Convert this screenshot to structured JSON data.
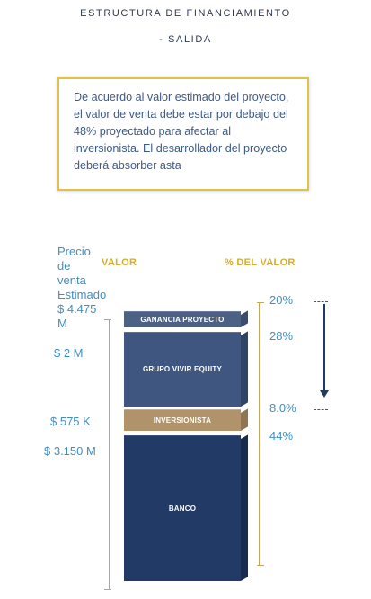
{
  "header": {
    "title": "ESTRUCTURA DE FINANCIAMIENTO",
    "subtitle": "- SALIDA"
  },
  "callout": {
    "text": "De acuerdo al valor estimado del proyecto, el valor de venta debe estar por debajo del 48% proyectado para afectar al inversionista. El desarrollador del proyecto deberá absorber asta"
  },
  "labels": {
    "valor_header": "VALOR",
    "pct_header": "% DEL VALOR",
    "precio_line1": "Precio",
    "precio_line2": "de",
    "precio_line3": "venta",
    "precio_line4": "Estimado",
    "precio_value_line1": "$ 4.475",
    "precio_value_line2": "M",
    "vivir_value": "$ 2 M",
    "inversionista_value": "$ 575 K",
    "banco_value": "$ 3.150 M"
  },
  "percentages": {
    "top": "20%",
    "vivir": "28%",
    "inversionista": "8.0%",
    "banco": "44%"
  },
  "blocks": {
    "ganancia": "GANANCIA PROYECTO",
    "vivir": "GRUPO VIVIR EQUITY",
    "inversionista": "INVERSIONISTA",
    "banco": "BANCO"
  },
  "colors": {
    "ganancia": "#4d6185",
    "vivir": "#3e5680",
    "inversionista": "#b0936a",
    "banco": "#223a66",
    "accent": "#d8ad2e",
    "value_text": "#3f8fc4"
  }
}
